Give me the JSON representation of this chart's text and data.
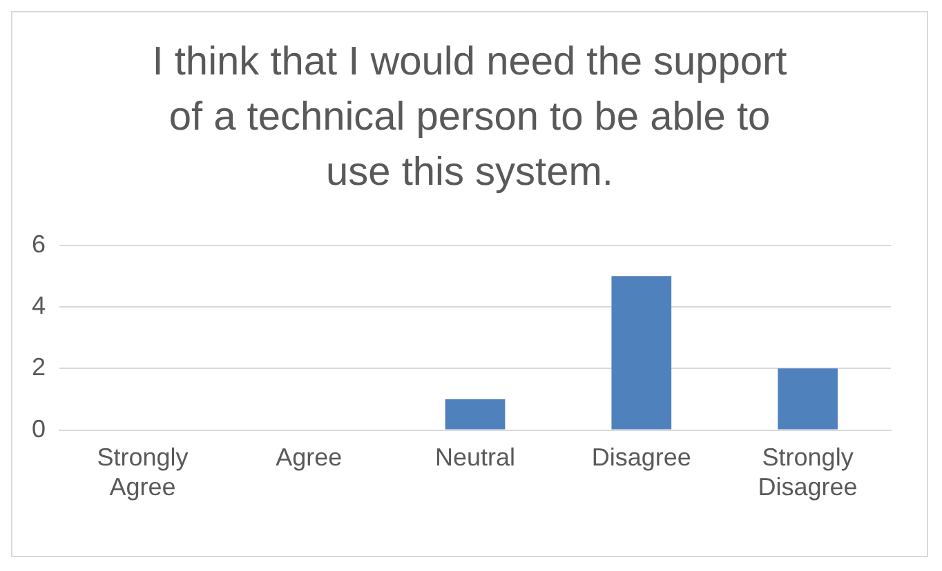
{
  "chart_data": {
    "type": "bar",
    "title": "I think that I would need the support of a technical person to be able to use this system.",
    "categories": [
      "Strongly Agree",
      "Agree",
      "Neutral",
      "Disagree",
      "Strongly Disagree"
    ],
    "values": [
      0,
      0,
      1,
      5,
      2
    ],
    "color": "#4f81bd",
    "ylim": [
      0,
      6
    ],
    "yticks": [
      0,
      2,
      4,
      6
    ],
    "grid": "y",
    "legend": false
  }
}
